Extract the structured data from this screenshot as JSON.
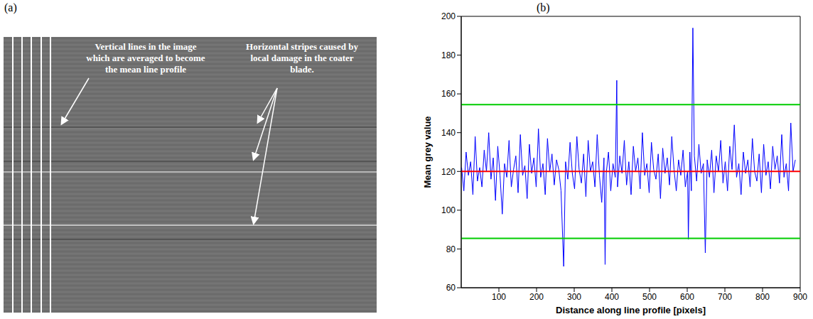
{
  "panel_labels": [
    "(a)",
    "(b)"
  ],
  "image": {
    "annotations": [
      {
        "text": [
          "Vertical lines in the image",
          "which are averaged to become",
          "the mean line profile"
        ]
      },
      {
        "text": [
          "Horizontal stripes caused by",
          "local damage in the coater",
          "blade."
        ]
      }
    ]
  },
  "chart_data": {
    "type": "line",
    "x_label": "Distance along line profile [pixels]",
    "y_label": "Mean grey value",
    "x": [
      1,
      7,
      13,
      19,
      25,
      31,
      37,
      43,
      49,
      55,
      61,
      67,
      73,
      79,
      85,
      91,
      97,
      103,
      109,
      115,
      121,
      127,
      133,
      139,
      145,
      151,
      157,
      163,
      169,
      175,
      181,
      187,
      193,
      199,
      205,
      211,
      217,
      223,
      229,
      235,
      241,
      247,
      253,
      259,
      265,
      272,
      277,
      283,
      289,
      295,
      301,
      307,
      313,
      319,
      325,
      331,
      337,
      343,
      349,
      355,
      361,
      367,
      373,
      379,
      382,
      385,
      391,
      397,
      403,
      409,
      413,
      415,
      421,
      427,
      433,
      439,
      445,
      451,
      457,
      463,
      469,
      475,
      481,
      487,
      493,
      499,
      505,
      511,
      517,
      523,
      529,
      535,
      541,
      547,
      553,
      559,
      565,
      571,
      577,
      583,
      589,
      595,
      601,
      603,
      607,
      611,
      615,
      619,
      625,
      631,
      637,
      643,
      648,
      653,
      659,
      665,
      671,
      677,
      683,
      689,
      695,
      701,
      707,
      713,
      719,
      725,
      731,
      737,
      743,
      749,
      755,
      761,
      767,
      773,
      779,
      785,
      791,
      797,
      803,
      809,
      815,
      821,
      827,
      833,
      839,
      845,
      851,
      857,
      863,
      869,
      875,
      881,
      887
    ],
    "values": [
      122,
      110,
      130,
      118,
      125,
      108,
      138,
      115,
      122,
      112,
      131,
      120,
      140,
      116,
      127,
      105,
      133,
      118,
      98,
      124,
      117,
      136,
      112,
      121,
      128,
      109,
      139,
      118,
      123,
      106,
      134,
      119,
      127,
      112,
      142,
      117,
      124,
      108,
      137,
      120,
      129,
      113,
      126,
      121,
      110,
      71,
      125,
      116,
      135,
      119,
      111,
      138,
      121,
      114,
      129,
      107,
      136,
      120,
      125,
      112,
      139,
      118,
      104,
      127,
      72,
      119,
      130,
      110,
      124,
      117,
      167,
      112,
      128,
      119,
      136,
      113,
      125,
      108,
      133,
      120,
      127,
      111,
      140,
      118,
      124,
      109,
      135,
      121,
      116,
      129,
      106,
      132,
      119,
      127,
      113,
      138,
      121,
      110,
      126,
      118,
      131,
      112,
      120,
      85,
      130,
      110,
      194,
      128,
      115,
      134,
      119,
      124,
      78,
      126,
      117,
      131,
      109,
      128,
      120,
      136,
      114,
      125,
      110,
      133,
      121,
      144,
      117,
      124,
      108,
      130,
      119,
      126,
      112,
      137,
      120,
      115,
      129,
      109,
      134,
      118,
      125,
      111,
      133,
      121,
      128,
      114,
      139,
      117,
      124,
      110,
      145,
      120,
      126
    ],
    "color": "#0000ff",
    "xlim": [
      0,
      900
    ],
    "xticks": [
      100,
      200,
      300,
      400,
      500,
      600,
      700,
      800,
      900
    ],
    "ylim": [
      60,
      200
    ],
    "yticks": [
      60,
      80,
      100,
      120,
      140,
      160,
      180,
      200
    ],
    "grid": false,
    "hlines": [
      {
        "y": 120,
        "color": "#ff0000"
      },
      {
        "y": 154.5,
        "color": "#00cc00"
      },
      {
        "y": 85.5,
        "color": "#00cc00"
      }
    ]
  }
}
